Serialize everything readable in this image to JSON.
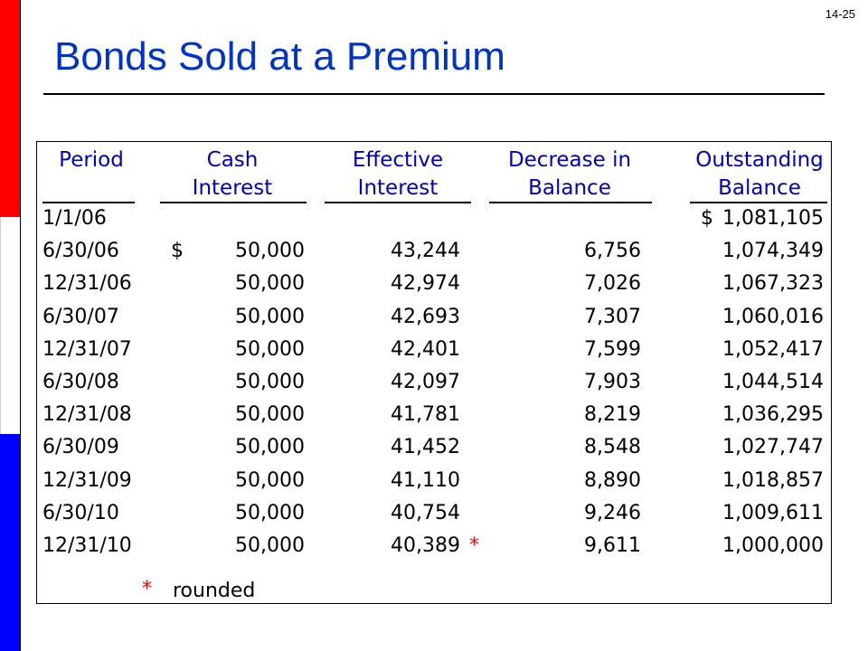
{
  "slide_number": "14-25",
  "title": "Bonds Sold at a Premium",
  "headers": {
    "period": [
      "",
      "Period"
    ],
    "cash_interest": [
      "Cash",
      "Interest"
    ],
    "effective_interest": [
      "Effective",
      "Interest"
    ],
    "decrease_in_balance": [
      "Decrease in",
      "Balance"
    ],
    "outstanding_balance": [
      "Outstanding",
      "Balance"
    ]
  },
  "rows": [
    {
      "period": "1/1/06",
      "cash_dollar": "",
      "cash": "",
      "effective": "",
      "mark": "",
      "decrease": "",
      "bal_dollar": "$",
      "balance": "1,081,105"
    },
    {
      "period": "6/30/06",
      "cash_dollar": "$",
      "cash": "50,000",
      "effective": "43,244",
      "mark": "",
      "decrease": "6,756",
      "bal_dollar": "",
      "balance": "1,074,349"
    },
    {
      "period": "12/31/06",
      "cash_dollar": "",
      "cash": "50,000",
      "effective": "42,974",
      "mark": "",
      "decrease": "7,026",
      "bal_dollar": "",
      "balance": "1,067,323"
    },
    {
      "period": "6/30/07",
      "cash_dollar": "",
      "cash": "50,000",
      "effective": "42,693",
      "mark": "",
      "decrease": "7,307",
      "bal_dollar": "",
      "balance": "1,060,016"
    },
    {
      "period": "12/31/07",
      "cash_dollar": "",
      "cash": "50,000",
      "effective": "42,401",
      "mark": "",
      "decrease": "7,599",
      "bal_dollar": "",
      "balance": "1,052,417"
    },
    {
      "period": "6/30/08",
      "cash_dollar": "",
      "cash": "50,000",
      "effective": "42,097",
      "mark": "",
      "decrease": "7,903",
      "bal_dollar": "",
      "balance": "1,044,514"
    },
    {
      "period": "12/31/08",
      "cash_dollar": "",
      "cash": "50,000",
      "effective": "41,781",
      "mark": "",
      "decrease": "8,219",
      "bal_dollar": "",
      "balance": "1,036,295"
    },
    {
      "period": "6/30/09",
      "cash_dollar": "",
      "cash": "50,000",
      "effective": "41,452",
      "mark": "",
      "decrease": "8,548",
      "bal_dollar": "",
      "balance": "1,027,747"
    },
    {
      "period": "12/31/09",
      "cash_dollar": "",
      "cash": "50,000",
      "effective": "41,110",
      "mark": "",
      "decrease": "8,890",
      "bal_dollar": "",
      "balance": "1,018,857"
    },
    {
      "period": "6/30/10",
      "cash_dollar": "",
      "cash": "50,000",
      "effective": "40,754",
      "mark": "",
      "decrease": "9,246",
      "bal_dollar": "",
      "balance": "1,009,611"
    },
    {
      "period": "12/31/10",
      "cash_dollar": "",
      "cash": "50,000",
      "effective": "40,389",
      "mark": "*",
      "decrease": "9,611",
      "bal_dollar": "",
      "balance": "1,000,000"
    }
  ],
  "footnote": {
    "mark": "*",
    "text": "rounded"
  },
  "colors": {
    "title": "#0033cc",
    "headers": "#0000cc",
    "asterisk": "#ff0000",
    "stripe_top": "#ff0000",
    "stripe_bottom": "#0000ff"
  }
}
